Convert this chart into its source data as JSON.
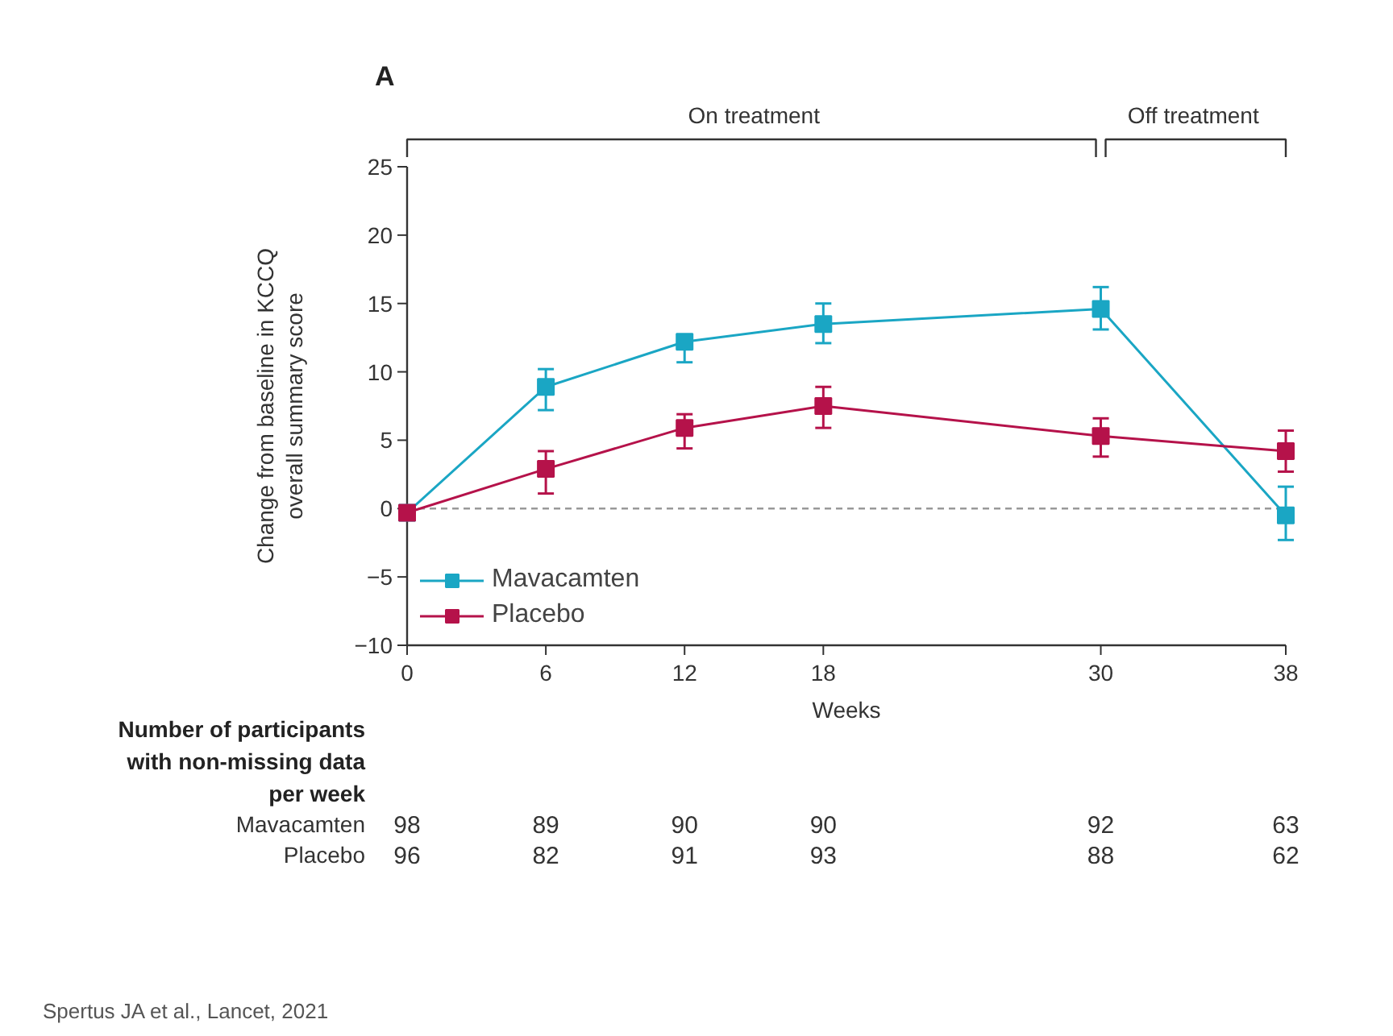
{
  "chart_data": {
    "type": "line",
    "title": "A",
    "xlabel": "Weeks",
    "ylabel": "Change from baseline in KCCQ\noverall summary score",
    "x": [
      0,
      6,
      12,
      18,
      30,
      38
    ],
    "xlim": [
      0,
      38
    ],
    "ylim": [
      -10,
      25
    ],
    "xticks": [
      0,
      6,
      12,
      18,
      30,
      38
    ],
    "yticks": [
      -10,
      -5,
      0,
      5,
      10,
      15,
      20,
      25
    ],
    "series": [
      {
        "name": "Mavacamten",
        "color": "#1aa6c4",
        "values": [
          -0.3,
          8.9,
          12.2,
          13.5,
          14.6,
          -0.5
        ],
        "errors": [
          null,
          [
            7.2,
            10.2
          ],
          [
            10.7,
            12.5
          ],
          [
            12.1,
            15.0
          ],
          [
            13.1,
            16.2
          ],
          [
            -2.3,
            1.6
          ]
        ]
      },
      {
        "name": "Placebo",
        "color": "#b5124a",
        "values": [
          -0.3,
          2.9,
          5.9,
          7.5,
          5.3,
          4.2
        ],
        "errors": [
          null,
          [
            1.1,
            4.2
          ],
          [
            4.4,
            6.9
          ],
          [
            5.9,
            8.9
          ],
          [
            3.8,
            6.6
          ],
          [
            2.7,
            5.7
          ]
        ]
      }
    ],
    "ref_lines": [
      {
        "axis": "y",
        "value": 0,
        "color": "#999999",
        "line_style": "dashed"
      }
    ],
    "marker": "square",
    "line_style": "solid",
    "grid": false,
    "legend": "bottom left",
    "annotations": [
      "On treatment",
      "Off treatment",
      "Number of participants\nwith non-missing data\nper week",
      "Mavacamten",
      "98",
      "89",
      "90",
      "90",
      "92",
      "63",
      "Placebo",
      "96",
      "82",
      "91",
      "93",
      "88",
      "62",
      "Spertus JA et al., Lancet, 2021"
    ]
  }
}
